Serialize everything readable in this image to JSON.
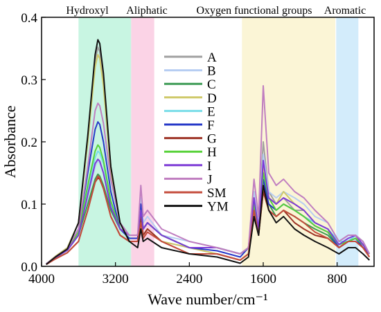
{
  "chart_data": {
    "type": "line",
    "xlabel": "Wave number/cm⁻¹",
    "ylabel": "Absorbance",
    "xlim": [
      4000,
      400
    ],
    "ylim": [
      0,
      0.4
    ],
    "x_reversed": true,
    "xticks": [
      4000,
      3200,
      2400,
      1600,
      800
    ],
    "xtick_labels": [
      "4000",
      "3200",
      "2400",
      "1600",
      "800"
    ],
    "yticks": [
      0,
      0.1,
      0.2,
      0.3,
      0.4
    ],
    "ytick_labels": [
      "0.0",
      "0.1",
      "0.2",
      "0.3",
      "0.4"
    ],
    "grid": false,
    "legend_position": "center",
    "regions": [
      {
        "label": "Hydroxyl",
        "x_from": 3600,
        "x_to": 3030,
        "color": "#c8f5e2"
      },
      {
        "label": "Aliphatic",
        "x_from": 3030,
        "x_to": 2780,
        "color": "#fbd3e6"
      },
      {
        "label": "Oxygen functional groups",
        "x_from": 1830,
        "x_to": 820,
        "color": "#fbf5d6"
      },
      {
        "label": "Aromatic",
        "x_from": 810,
        "x_to": 570,
        "color": "#d3ecfb"
      }
    ],
    "series": [
      {
        "name": "A",
        "color": "#a0a0a0",
        "x": [
          3950,
          3850,
          3720,
          3600,
          3500,
          3420,
          3390,
          3370,
          3330,
          3250,
          3150,
          3050,
          2960,
          2925,
          2900,
          2853,
          2700,
          2400,
          2100,
          1850,
          1760,
          1700,
          1650,
          1600,
          1540,
          1460,
          1380,
          1260,
          1160,
          1040,
          900,
          780,
          680,
          600,
          520,
          450
        ],
        "y": [
          0.004,
          0.016,
          0.03,
          0.07,
          0.2,
          0.33,
          0.352,
          0.345,
          0.3,
          0.16,
          0.07,
          0.04,
          0.04,
          0.08,
          0.05,
          0.06,
          0.04,
          0.03,
          0.02,
          0.01,
          0.02,
          0.12,
          0.07,
          0.2,
          0.12,
          0.1,
          0.11,
          0.09,
          0.09,
          0.07,
          0.06,
          0.03,
          0.04,
          0.05,
          0.03,
          0.02
        ]
      },
      {
        "name": "B",
        "color": "#b6cdf2",
        "x": [
          3950,
          3850,
          3720,
          3600,
          3500,
          3420,
          3390,
          3370,
          3330,
          3250,
          3150,
          3050,
          2960,
          2925,
          2900,
          2853,
          2700,
          2400,
          2100,
          1850,
          1760,
          1700,
          1650,
          1600,
          1540,
          1460,
          1380,
          1260,
          1160,
          1040,
          900,
          780,
          680,
          600,
          520,
          450
        ],
        "y": [
          0.004,
          0.014,
          0.026,
          0.05,
          0.11,
          0.16,
          0.17,
          0.166,
          0.15,
          0.09,
          0.06,
          0.05,
          0.05,
          0.11,
          0.07,
          0.08,
          0.05,
          0.04,
          0.03,
          0.02,
          0.03,
          0.12,
          0.07,
          0.18,
          0.12,
          0.11,
          0.12,
          0.11,
          0.1,
          0.08,
          0.07,
          0.04,
          0.05,
          0.05,
          0.04,
          0.02
        ]
      },
      {
        "name": "C",
        "color": "#3b9a53",
        "x": [
          3950,
          3850,
          3720,
          3600,
          3500,
          3420,
          3390,
          3370,
          3330,
          3250,
          3150,
          3050,
          2960,
          2925,
          2900,
          2853,
          2700,
          2400,
          2100,
          1850,
          1760,
          1700,
          1650,
          1600,
          1540,
          1460,
          1380,
          1260,
          1160,
          1040,
          900,
          780,
          680,
          600,
          520,
          450
        ],
        "y": [
          0.004,
          0.014,
          0.026,
          0.05,
          0.1,
          0.14,
          0.148,
          0.145,
          0.13,
          0.09,
          0.06,
          0.05,
          0.05,
          0.09,
          0.06,
          0.07,
          0.05,
          0.03,
          0.03,
          0.02,
          0.03,
          0.09,
          0.05,
          0.12,
          0.1,
          0.08,
          0.09,
          0.08,
          0.07,
          0.06,
          0.05,
          0.03,
          0.04,
          0.04,
          0.03,
          0.02
        ]
      },
      {
        "name": "D",
        "color": "#cfc96a",
        "x": [
          3950,
          3850,
          3720,
          3600,
          3500,
          3420,
          3390,
          3370,
          3330,
          3250,
          3150,
          3050,
          2960,
          2925,
          2900,
          2853,
          2700,
          2400,
          2100,
          1850,
          1760,
          1700,
          1650,
          1600,
          1540,
          1460,
          1380,
          1260,
          1160,
          1040,
          900,
          780,
          680,
          600,
          520,
          450
        ],
        "y": [
          0.004,
          0.016,
          0.03,
          0.07,
          0.2,
          0.32,
          0.34,
          0.334,
          0.29,
          0.15,
          0.07,
          0.04,
          0.04,
          0.08,
          0.05,
          0.06,
          0.04,
          0.03,
          0.02,
          0.01,
          0.02,
          0.11,
          0.06,
          0.16,
          0.11,
          0.1,
          0.12,
          0.1,
          0.09,
          0.07,
          0.06,
          0.03,
          0.04,
          0.05,
          0.03,
          0.02
        ]
      },
      {
        "name": "E",
        "color": "#77dde8",
        "x": [
          3950,
          3850,
          3720,
          3600,
          3500,
          3420,
          3390,
          3370,
          3330,
          3250,
          3150,
          3050,
          2960,
          2925,
          2900,
          2853,
          2700,
          2400,
          2100,
          1850,
          1760,
          1700,
          1650,
          1600,
          1540,
          1460,
          1380,
          1260,
          1160,
          1040,
          900,
          780,
          680,
          600,
          520,
          450
        ],
        "y": [
          0.004,
          0.014,
          0.026,
          0.05,
          0.12,
          0.175,
          0.185,
          0.182,
          0.165,
          0.1,
          0.06,
          0.05,
          0.05,
          0.09,
          0.06,
          0.07,
          0.05,
          0.03,
          0.03,
          0.02,
          0.03,
          0.1,
          0.06,
          0.14,
          0.11,
          0.09,
          0.1,
          0.09,
          0.08,
          0.07,
          0.06,
          0.04,
          0.04,
          0.05,
          0.04,
          0.02
        ]
      },
      {
        "name": "F",
        "color": "#2638c8",
        "x": [
          3950,
          3850,
          3720,
          3600,
          3500,
          3420,
          3390,
          3370,
          3330,
          3250,
          3150,
          3050,
          2960,
          2925,
          2900,
          2853,
          2700,
          2400,
          2100,
          1850,
          1760,
          1700,
          1650,
          1600,
          1540,
          1460,
          1380,
          1260,
          1160,
          1040,
          900,
          780,
          680,
          600,
          520,
          450
        ],
        "y": [
          0.004,
          0.015,
          0.028,
          0.06,
          0.15,
          0.22,
          0.232,
          0.228,
          0.2,
          0.12,
          0.06,
          0.045,
          0.045,
          0.1,
          0.06,
          0.07,
          0.05,
          0.03,
          0.025,
          0.015,
          0.03,
          0.1,
          0.06,
          0.14,
          0.1,
          0.09,
          0.1,
          0.09,
          0.08,
          0.065,
          0.055,
          0.03,
          0.04,
          0.045,
          0.03,
          0.02
        ]
      },
      {
        "name": "G",
        "color": "#9d3224",
        "x": [
          3950,
          3850,
          3720,
          3600,
          3500,
          3420,
          3390,
          3370,
          3330,
          3250,
          3150,
          3050,
          2960,
          2925,
          2900,
          2853,
          2700,
          2400,
          2100,
          1850,
          1760,
          1700,
          1650,
          1600,
          1540,
          1460,
          1380,
          1260,
          1160,
          1040,
          900,
          780,
          680,
          600,
          520,
          450
        ],
        "y": [
          0.003,
          0.012,
          0.022,
          0.04,
          0.09,
          0.135,
          0.142,
          0.14,
          0.125,
          0.08,
          0.05,
          0.04,
          0.04,
          0.08,
          0.05,
          0.06,
          0.04,
          0.02,
          0.02,
          0.01,
          0.02,
          0.08,
          0.05,
          0.12,
          0.09,
          0.08,
          0.09,
          0.07,
          0.06,
          0.05,
          0.045,
          0.03,
          0.04,
          0.04,
          0.03,
          0.015
        ]
      },
      {
        "name": "H",
        "color": "#58d23a",
        "x": [
          3950,
          3850,
          3720,
          3600,
          3500,
          3420,
          3390,
          3370,
          3330,
          3250,
          3150,
          3050,
          2960,
          2925,
          2900,
          2853,
          2700,
          2400,
          2100,
          1850,
          1760,
          1700,
          1650,
          1600,
          1540,
          1460,
          1380,
          1260,
          1160,
          1040,
          900,
          780,
          680,
          600,
          520,
          450
        ],
        "y": [
          0.004,
          0.014,
          0.026,
          0.055,
          0.13,
          0.185,
          0.195,
          0.191,
          0.17,
          0.105,
          0.06,
          0.05,
          0.05,
          0.09,
          0.06,
          0.07,
          0.05,
          0.03,
          0.03,
          0.02,
          0.03,
          0.1,
          0.06,
          0.15,
          0.11,
          0.09,
          0.1,
          0.09,
          0.08,
          0.065,
          0.055,
          0.035,
          0.04,
          0.045,
          0.035,
          0.02
        ]
      },
      {
        "name": "I",
        "color": "#7d3ad6",
        "x": [
          3950,
          3850,
          3720,
          3600,
          3500,
          3420,
          3390,
          3370,
          3330,
          3250,
          3150,
          3050,
          2960,
          2925,
          2900,
          2853,
          2700,
          2400,
          2100,
          1850,
          1760,
          1700,
          1650,
          1600,
          1540,
          1460,
          1380,
          1260,
          1160,
          1040,
          900,
          780,
          680,
          600,
          520,
          450
        ],
        "y": [
          0.004,
          0.014,
          0.026,
          0.05,
          0.115,
          0.165,
          0.172,
          0.169,
          0.15,
          0.095,
          0.06,
          0.05,
          0.05,
          0.09,
          0.06,
          0.07,
          0.05,
          0.03,
          0.03,
          0.02,
          0.03,
          0.11,
          0.06,
          0.17,
          0.11,
          0.1,
          0.11,
          0.1,
          0.09,
          0.07,
          0.06,
          0.035,
          0.045,
          0.05,
          0.035,
          0.02
        ]
      },
      {
        "name": "J",
        "color": "#c07ec0",
        "x": [
          3950,
          3850,
          3720,
          3600,
          3500,
          3420,
          3390,
          3370,
          3330,
          3250,
          3150,
          3050,
          2960,
          2925,
          2900,
          2853,
          2700,
          2400,
          2100,
          1850,
          1760,
          1700,
          1650,
          1600,
          1540,
          1460,
          1380,
          1260,
          1160,
          1040,
          900,
          780,
          680,
          600,
          520,
          450
        ],
        "y": [
          0.004,
          0.015,
          0.028,
          0.06,
          0.16,
          0.25,
          0.262,
          0.258,
          0.23,
          0.14,
          0.07,
          0.05,
          0.05,
          0.13,
          0.08,
          0.09,
          0.06,
          0.04,
          0.03,
          0.02,
          0.03,
          0.14,
          0.08,
          0.29,
          0.15,
          0.13,
          0.14,
          0.12,
          0.11,
          0.09,
          0.07,
          0.04,
          0.05,
          0.05,
          0.04,
          0.02
        ]
      },
      {
        "name": "SM",
        "color": "#c44c3c",
        "x": [
          3950,
          3850,
          3720,
          3600,
          3500,
          3420,
          3390,
          3370,
          3330,
          3250,
          3150,
          3050,
          2960,
          2925,
          2900,
          2853,
          2700,
          2400,
          2100,
          1850,
          1760,
          1700,
          1650,
          1600,
          1540,
          1460,
          1380,
          1260,
          1160,
          1040,
          900,
          780,
          680,
          600,
          520,
          450
        ],
        "y": [
          0.003,
          0.012,
          0.022,
          0.04,
          0.09,
          0.135,
          0.145,
          0.142,
          0.125,
          0.08,
          0.05,
          0.04,
          0.04,
          0.07,
          0.045,
          0.055,
          0.04,
          0.02,
          0.02,
          0.01,
          0.02,
          0.09,
          0.05,
          0.13,
          0.09,
          0.08,
          0.09,
          0.08,
          0.07,
          0.055,
          0.045,
          0.03,
          0.04,
          0.04,
          0.03,
          0.015
        ]
      },
      {
        "name": "YM",
        "color": "#111111",
        "x": [
          3950,
          3850,
          3720,
          3600,
          3500,
          3420,
          3390,
          3370,
          3330,
          3250,
          3150,
          3050,
          2960,
          2925,
          2900,
          2853,
          2700,
          2400,
          2100,
          1850,
          1760,
          1700,
          1650,
          1600,
          1540,
          1460,
          1380,
          1260,
          1160,
          1040,
          900,
          780,
          680,
          600,
          520,
          450
        ],
        "y": [
          0.003,
          0.015,
          0.028,
          0.07,
          0.21,
          0.34,
          0.364,
          0.358,
          0.31,
          0.16,
          0.07,
          0.04,
          0.03,
          0.06,
          0.04,
          0.045,
          0.03,
          0.02,
          0.015,
          0.005,
          0.015,
          0.08,
          0.05,
          0.13,
          0.09,
          0.07,
          0.08,
          0.06,
          0.05,
          0.04,
          0.03,
          0.02,
          0.03,
          0.03,
          0.02,
          0.01
        ]
      }
    ]
  }
}
